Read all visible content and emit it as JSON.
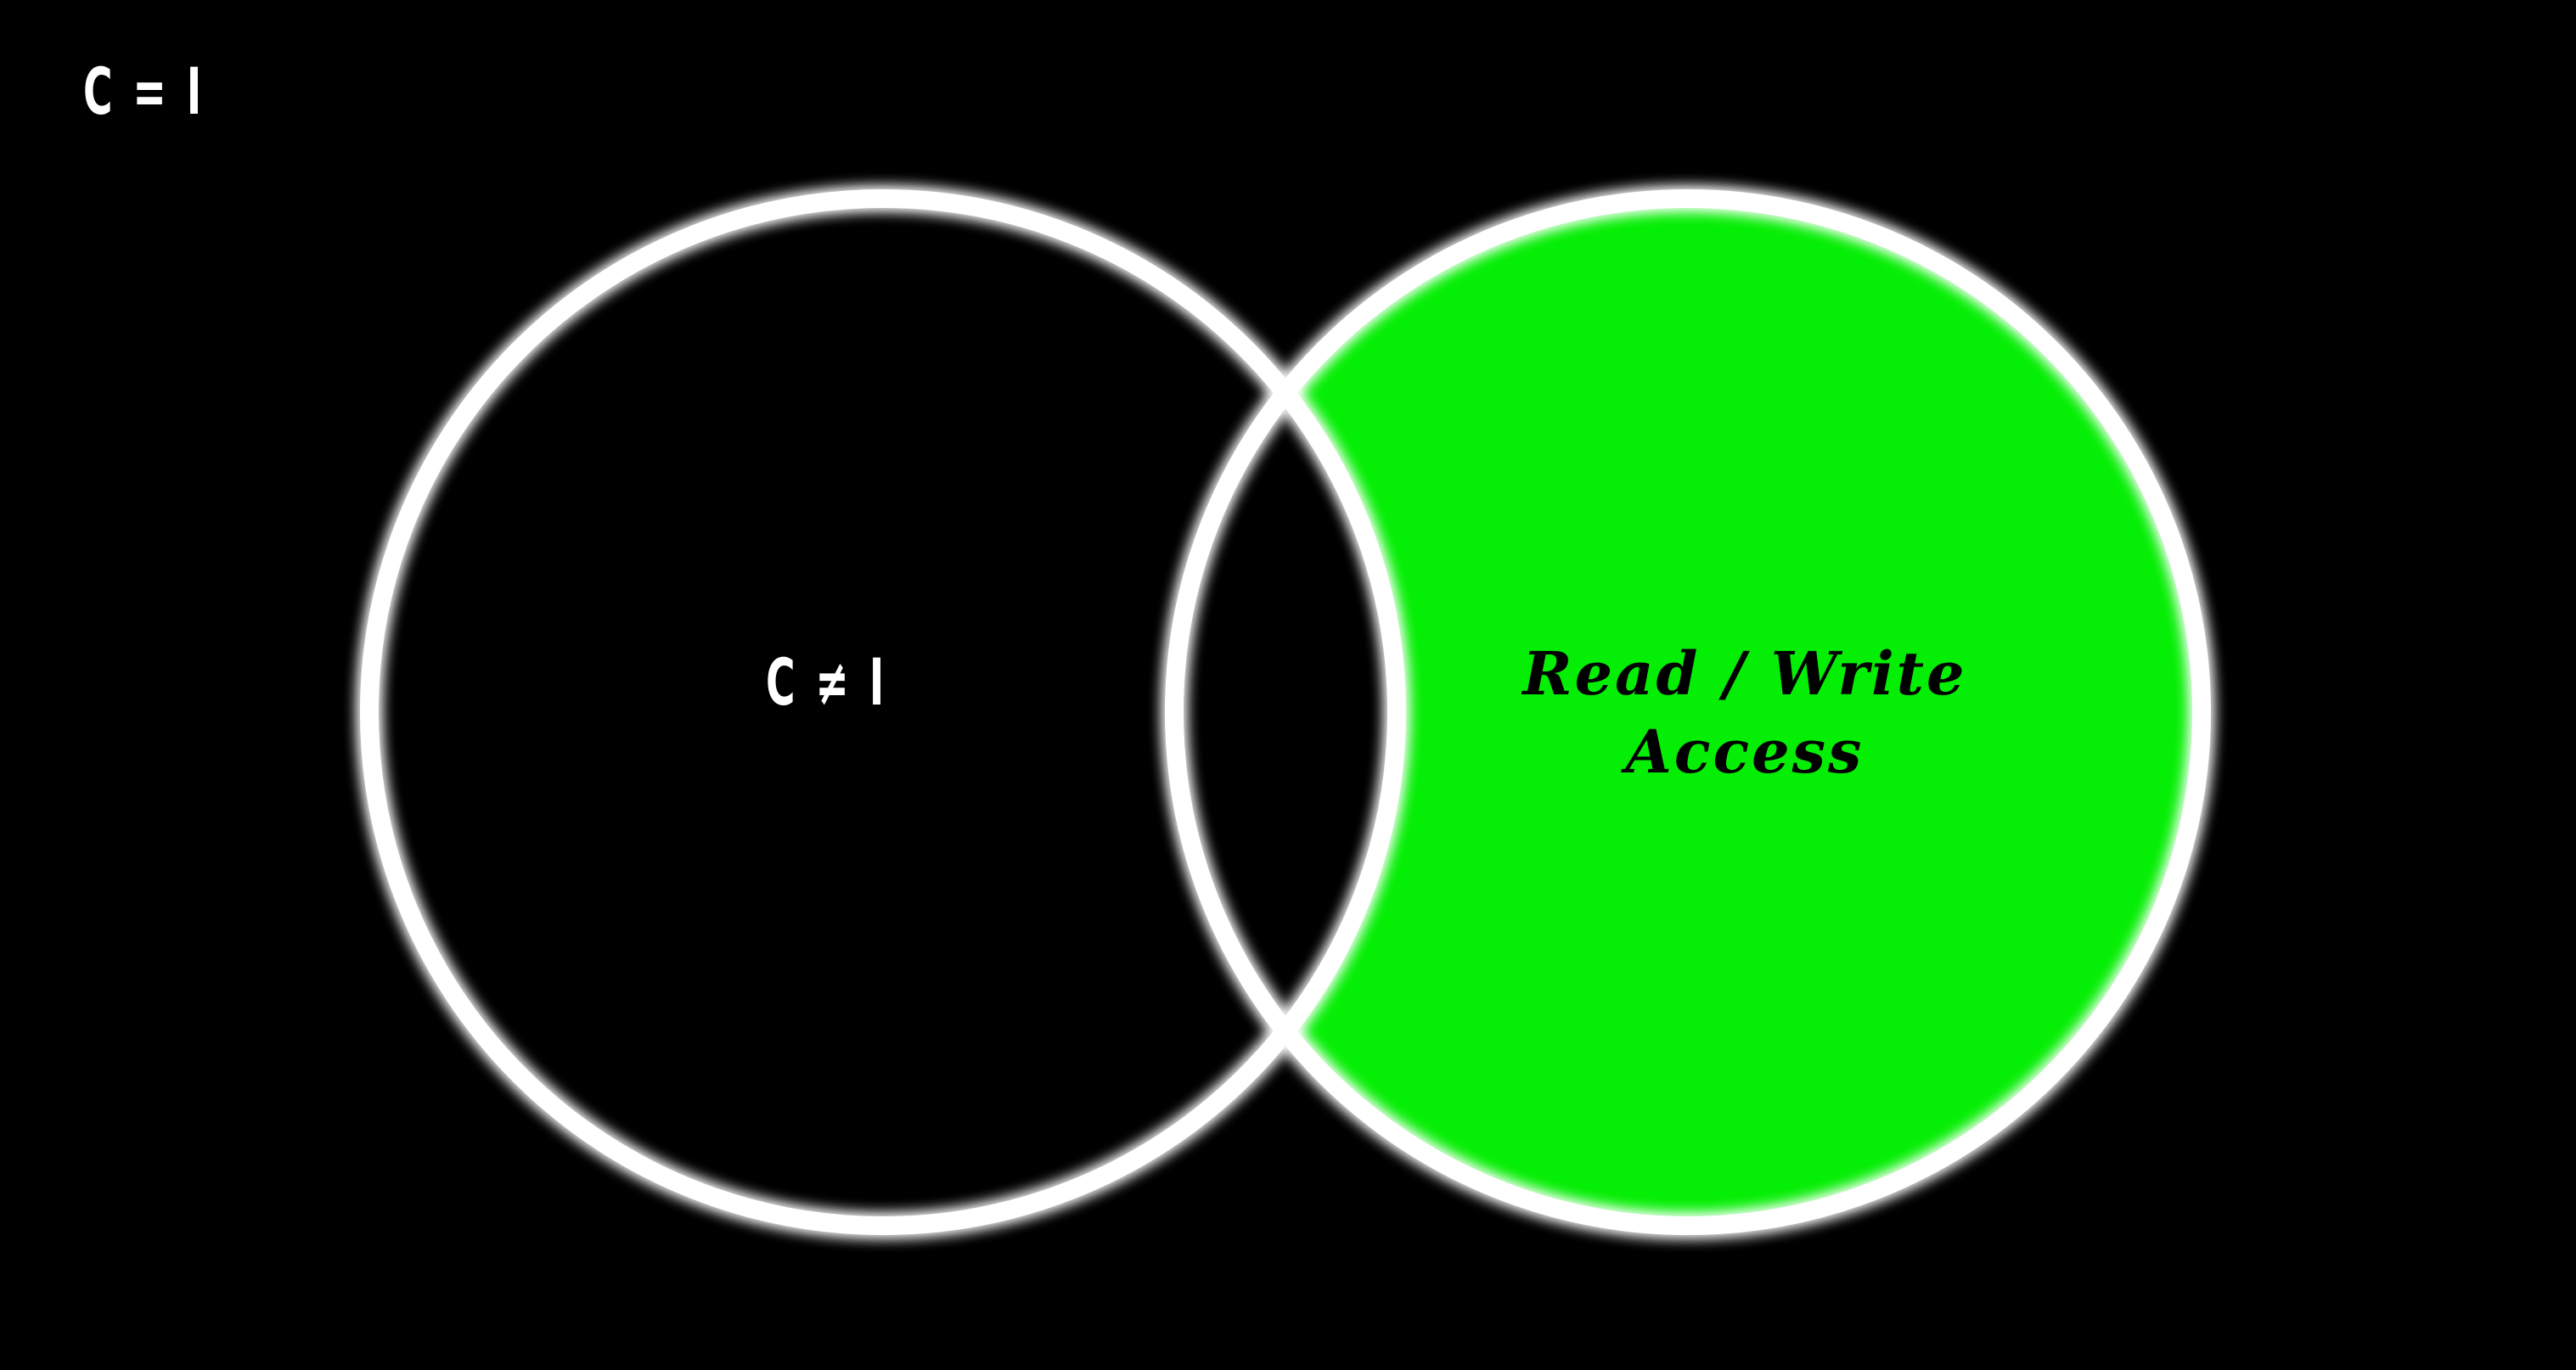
{
  "title": "C = I",
  "diagram": {
    "type": "venn",
    "colors": {
      "background": "#000000",
      "outline": "#ffffff",
      "highlight": "#05ee05",
      "left_text": "#ffffff",
      "right_text": "#000000"
    },
    "sets": [
      {
        "id": "left",
        "label": "C ≠ I",
        "filled": false
      },
      {
        "id": "right",
        "label_lines": [
          "Read / Write",
          "Access"
        ],
        "filled": true,
        "fill_region": "right-only"
      }
    ]
  }
}
